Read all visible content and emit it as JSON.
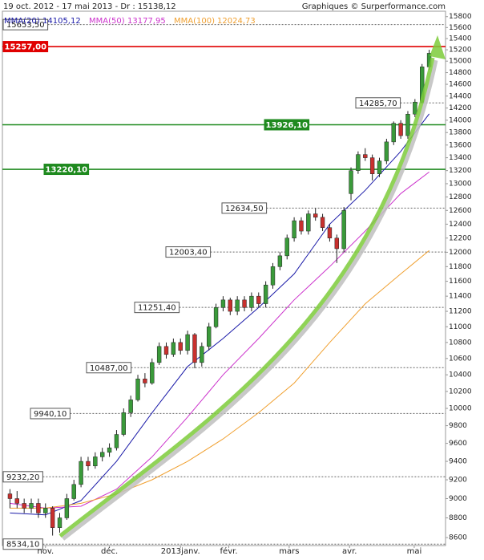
{
  "chart_data": {
    "type": "candlestick",
    "title": "19 oct. 2012 - 17 mai 2013 - Dr : 15138,12",
    "source": "Graphiques © Surperformance.com",
    "log_scale": true,
    "ylim": [
      8520,
      15900
    ],
    "yticks": [
      8600,
      8800,
      9000,
      9200,
      9400,
      9600,
      9800,
      10000,
      10200,
      10400,
      10600,
      10800,
      11000,
      11200,
      11400,
      11600,
      11800,
      12000,
      12200,
      12400,
      12600,
      12800,
      13000,
      13200,
      13400,
      13600,
      13800,
      14000,
      14200,
      14400,
      14600,
      14800,
      15000,
      15200,
      15400,
      15600,
      15800
    ],
    "xlim": [
      -0.5,
      59.5
    ],
    "xticks": [
      {
        "value": 5,
        "label": "nov."
      },
      {
        "value": 14,
        "label": "déc."
      },
      {
        "value": 24,
        "label": "2013janv."
      },
      {
        "value": 30.8,
        "label": "févr."
      },
      {
        "value": 39.3,
        "label": "mars"
      },
      {
        "value": 47.8,
        "label": "avr."
      },
      {
        "value": 56.9,
        "label": "mai"
      }
    ],
    "up_color": "#3a9a3a",
    "down_color": "#c8302e",
    "ohlc": [
      [
        9050,
        9100,
        8900,
        9000
      ],
      [
        9000,
        9080,
        8900,
        8950
      ],
      [
        8950,
        9000,
        8850,
        8900
      ],
      [
        8900,
        9000,
        8850,
        8950
      ],
      [
        8950,
        9000,
        8800,
        8850
      ],
      [
        8850,
        8950,
        8800,
        8900
      ],
      [
        8900,
        8920,
        8620,
        8700
      ],
      [
        8700,
        8850,
        8650,
        8800
      ],
      [
        8800,
        9050,
        8780,
        9000
      ],
      [
        9000,
        9200,
        8980,
        9150
      ],
      [
        9150,
        9450,
        9120,
        9400
      ],
      [
        9400,
        9450,
        9300,
        9350
      ],
      [
        9350,
        9500,
        9320,
        9450
      ],
      [
        9450,
        9550,
        9400,
        9500
      ],
      [
        9500,
        9600,
        9450,
        9550
      ],
      [
        9550,
        9750,
        9520,
        9700
      ],
      [
        9700,
        10000,
        9680,
        9950
      ],
      [
        9950,
        10150,
        9900,
        10100
      ],
      [
        10100,
        10400,
        10080,
        10350
      ],
      [
        10350,
        10420,
        10250,
        10300
      ],
      [
        10300,
        10600,
        10280,
        10550
      ],
      [
        10550,
        10800,
        10520,
        10750
      ],
      [
        10750,
        10800,
        10600,
        10650
      ],
      [
        10650,
        10850,
        10620,
        10800
      ],
      [
        10800,
        10850,
        10650,
        10700
      ],
      [
        10700,
        10950,
        10650,
        10900
      ],
      [
        10900,
        10920,
        10480,
        10550
      ],
      [
        10550,
        10800,
        10500,
        10750
      ],
      [
        10750,
        11050,
        10700,
        11000
      ],
      [
        11000,
        11300,
        10980,
        11250
      ],
      [
        11250,
        11400,
        11200,
        11350
      ],
      [
        11350,
        11380,
        11150,
        11200
      ],
      [
        11200,
        11400,
        11150,
        11350
      ],
      [
        11350,
        11400,
        11200,
        11250
      ],
      [
        11250,
        11450,
        11200,
        11400
      ],
      [
        11400,
        11450,
        11250,
        11300
      ],
      [
        11300,
        11600,
        11250,
        11550
      ],
      [
        11550,
        11850,
        11500,
        11800
      ],
      [
        11800,
        12000,
        11750,
        11950
      ],
      [
        11950,
        12250,
        11900,
        12200
      ],
      [
        12200,
        12500,
        12150,
        12450
      ],
      [
        12450,
        12500,
        12250,
        12300
      ],
      [
        12300,
        12600,
        12250,
        12550
      ],
      [
        12550,
        12634,
        12450,
        12500
      ],
      [
        12500,
        12550,
        12300,
        12350
      ],
      [
        12350,
        12400,
        12150,
        12200
      ],
      [
        12200,
        12250,
        11850,
        12050
      ],
      [
        12050,
        12650,
        12000,
        12600
      ],
      [
        12850,
        13250,
        12750,
        13200
      ],
      [
        13200,
        13500,
        13150,
        13450
      ],
      [
        13450,
        13550,
        13350,
        13400
      ],
      [
        13400,
        13450,
        13050,
        13150
      ],
      [
        13150,
        13400,
        13100,
        13350
      ],
      [
        13350,
        13700,
        13300,
        13650
      ],
      [
        13650,
        13980,
        13600,
        13950
      ],
      [
        13950,
        14000,
        13700,
        13750
      ],
      [
        13750,
        14150,
        13700,
        14100
      ],
      [
        14100,
        14350,
        14050,
        14300
      ],
      [
        14300,
        14950,
        14280,
        14900
      ],
      [
        14900,
        15200,
        14850,
        15138
      ]
    ],
    "series": [
      {
        "name": "MMA(20)",
        "last_label": "14105,12",
        "color": "#1a1aa8",
        "x": [
          0,
          5,
          10,
          15,
          20,
          25,
          30,
          35,
          40,
          45,
          50,
          55,
          59
        ],
        "values": [
          8850,
          8830,
          8980,
          9400,
          9950,
          10500,
          10850,
          11250,
          11700,
          12400,
          12900,
          13500,
          14105
        ]
      },
      {
        "name": "MMA(50)",
        "last_label": "13177,95",
        "color": "#cc33cc",
        "x": [
          0,
          5,
          10,
          15,
          20,
          25,
          30,
          35,
          40,
          45,
          50,
          55,
          59
        ],
        "values": [
          8950,
          8900,
          8920,
          9100,
          9450,
          9900,
          10400,
          10850,
          11350,
          11800,
          12300,
          12850,
          13178
        ]
      },
      {
        "name": "MMA(100)",
        "last_label": "12024,73",
        "color": "#f0a030",
        "x": [
          0,
          5,
          10,
          15,
          20,
          25,
          30,
          35,
          40,
          45,
          50,
          55,
          59
        ],
        "values": [
          8900,
          8900,
          8950,
          9050,
          9200,
          9400,
          9650,
          9950,
          10300,
          10800,
          11300,
          11700,
          12024
        ]
      }
    ],
    "levels": [
      {
        "value": 15653.5,
        "label": "15653,50",
        "color": "#666666"
      },
      {
        "value": 15257,
        "label": "15257,00",
        "color": "#e00000"
      },
      {
        "value": 14285.7,
        "label": "14285,70",
        "color": "#666666"
      },
      {
        "value": 13926.1,
        "label": "13926,10",
        "color": "#1f8a1f"
      },
      {
        "value": 13220.1,
        "label": "13220,10",
        "color": "#1f8a1f"
      },
      {
        "value": 12634.5,
        "label": "12634,50",
        "color": "#666666"
      },
      {
        "value": 12003.4,
        "label": "12003,40",
        "color": "#666666"
      },
      {
        "value": 11251.4,
        "label": "11251,40",
        "color": "#666666"
      },
      {
        "value": 10487,
        "label": "10487,00",
        "color": "#666666"
      },
      {
        "value": 9940.1,
        "label": "9940,10",
        "color": "#666666"
      },
      {
        "value": 9232.2,
        "label": "9232,20",
        "color": "#666666"
      },
      {
        "value": 8534.1,
        "label": "8534,10",
        "color": "#666666"
      }
    ]
  }
}
